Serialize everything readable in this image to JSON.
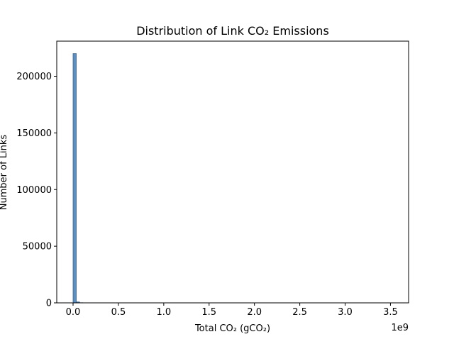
{
  "chart_data": {
    "type": "bar",
    "title": "Distribution of Link CO₂ Emissions",
    "xlabel": "Total CO₂ (gCO₂)",
    "ylabel": "Number of Links",
    "x_offset_label": "1e9",
    "xlim": [
      -0.18,
      3.7
    ],
    "ylim": [
      0,
      231000
    ],
    "x_ticks": [
      0.0,
      0.5,
      1.0,
      1.5,
      2.0,
      2.5,
      3.0,
      3.5
    ],
    "x_tick_labels": [
      "0.0",
      "0.5",
      "1.0",
      "1.5",
      "2.0",
      "2.5",
      "3.0",
      "3.5"
    ],
    "y_ticks": [
      0,
      50000,
      100000,
      150000,
      200000
    ],
    "y_tick_labels": [
      "0",
      "50000",
      "100000",
      "150000",
      "200000"
    ],
    "bin_width": 0.0354,
    "bins": [
      {
        "x0": 0.0,
        "count": 220000
      },
      {
        "x0": 0.0354,
        "count": 800
      },
      {
        "x0": 0.0708,
        "count": 120
      },
      {
        "x0": 0.1062,
        "count": 40
      }
    ],
    "grid": false,
    "colors": {
      "bar_fill": "#5b8fc1",
      "bar_edge": "#40668f",
      "axis": "#000000"
    }
  }
}
